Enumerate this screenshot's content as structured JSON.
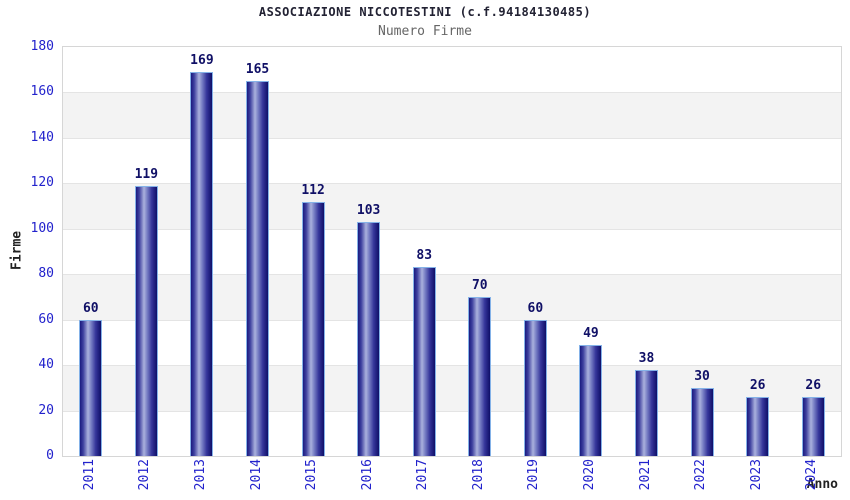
{
  "chart_data": {
    "type": "bar",
    "title": "ASSOCIAZIONE NICCOTESTINI (c.f.94184130485)",
    "subtitle": "Numero Firme",
    "xlabel": "Anno",
    "ylabel": "Firme",
    "categories": [
      "2011",
      "2012",
      "2013",
      "2014",
      "2015",
      "2016",
      "2017",
      "2018",
      "2019",
      "2020",
      "2021",
      "2022",
      "2023",
      "2024"
    ],
    "values": [
      60,
      119,
      169,
      165,
      112,
      103,
      83,
      70,
      60,
      49,
      38,
      30,
      26,
      26
    ],
    "ylim": [
      0,
      180
    ],
    "ytick_step": 20,
    "grid": "horizontal-alternating-bands",
    "legend": "none",
    "colors": {
      "bar_dark": "#15157b",
      "bar_highlight": "#aab1dd",
      "bar_border": "#84b2e8",
      "axis_tick_label": "#2222cc",
      "value_label": "#101066",
      "axis_title": "#222222",
      "title_text": "#222233",
      "subtitle_text": "#666666",
      "band_gray": "#f3f3f3",
      "plot_border": "#d6d6d6"
    }
  }
}
